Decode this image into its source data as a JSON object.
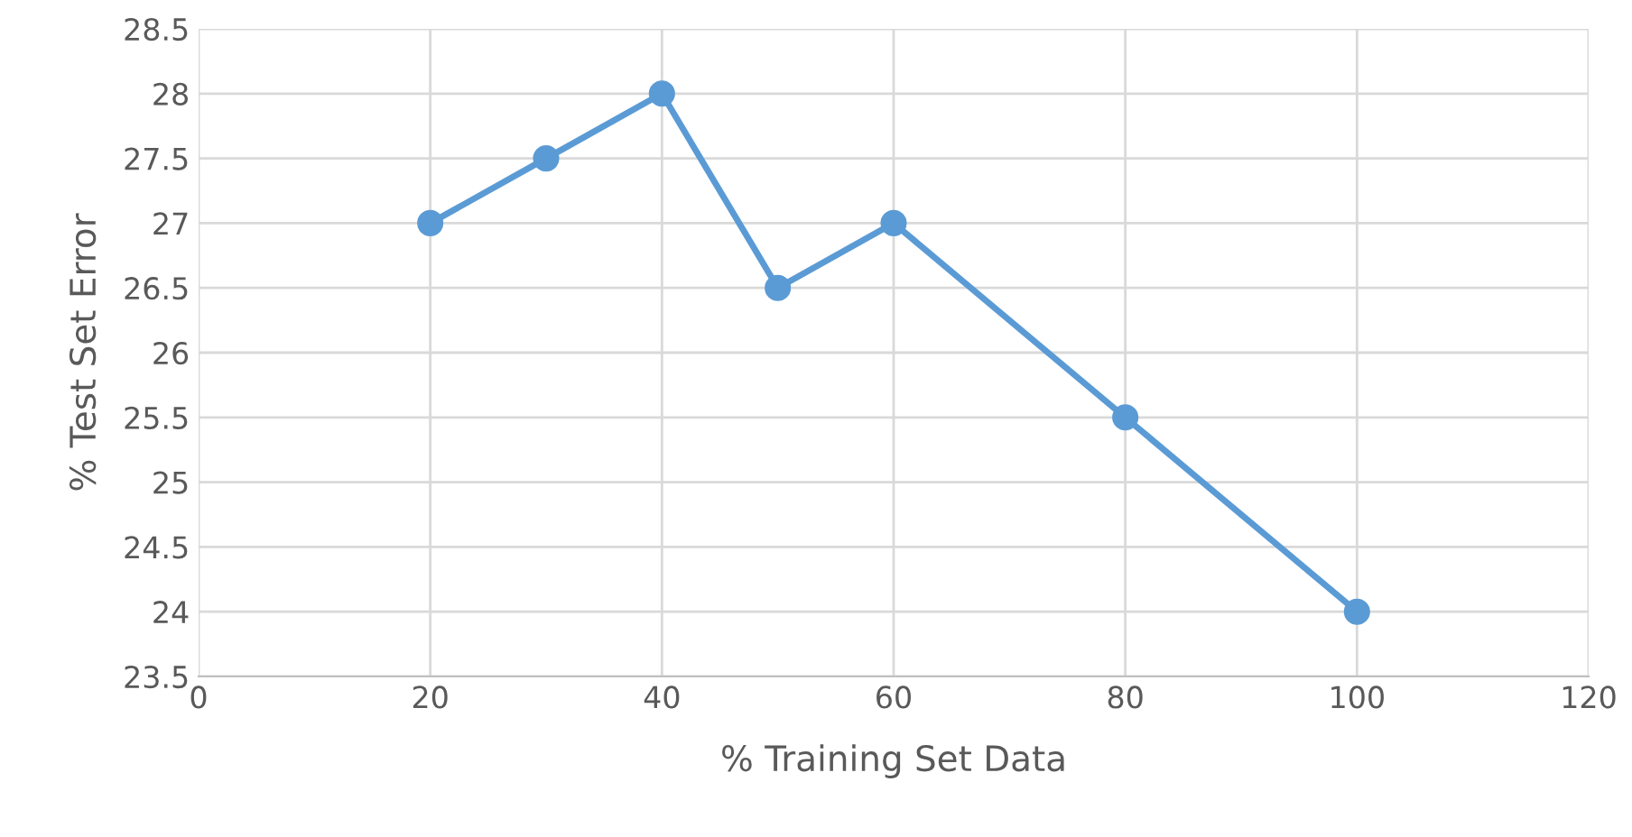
{
  "chart_data": {
    "type": "line",
    "xlabel": "% Training Set Data",
    "ylabel": "% Test Set Error",
    "x": [
      20,
      30,
      40,
      50,
      60,
      80,
      100
    ],
    "series": [
      {
        "color": "#5b9bd5",
        "values": [
          27,
          27.5,
          28,
          26.5,
          27,
          25.5,
          24
        ]
      }
    ],
    "xlim": [
      0,
      120
    ],
    "xticks": [
      0,
      20,
      40,
      60,
      80,
      100,
      120
    ],
    "ylim": [
      23.5,
      28.5
    ],
    "yticks": [
      23.5,
      24,
      24.5,
      25,
      25.5,
      26,
      26.5,
      27,
      27.5,
      28,
      28.5
    ],
    "grid": true,
    "marker": "circle",
    "line_style": "solid",
    "legend": false
  }
}
